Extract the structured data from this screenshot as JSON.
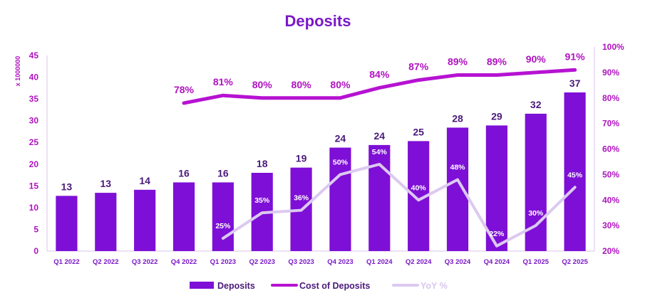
{
  "chart_data": {
    "type": "bar",
    "title": "Deposits",
    "ylabel_left": "x 1000000",
    "ylim_left": [
      0,
      45
    ],
    "yticks_left": [
      "0",
      "5",
      "10",
      "15",
      "20",
      "25",
      "30",
      "35",
      "40",
      "45"
    ],
    "ylim_right": [
      0.2,
      1.0
    ],
    "yticks_right": [
      "20%",
      "30%",
      "40%",
      "50%",
      "60%",
      "70%",
      "80%",
      "90%",
      "100%"
    ],
    "categories": [
      "Q1 2022",
      "Q2 2022",
      "Q3 2022",
      "Q4 2022",
      "Q1 2023",
      "Q2 2023",
      "Q3 2023",
      "Q4 2023",
      "Q1 2024",
      "Q2 2024",
      "Q3 2024",
      "Q4 2024",
      "Q1 2025",
      "Q2 2025"
    ],
    "series": [
      {
        "name": "Deposits",
        "kind": "bar",
        "axis": "left",
        "color": "#7e0fd6",
        "values": [
          12.7,
          13.4,
          14.1,
          15.8,
          15.8,
          18.0,
          19.2,
          23.8,
          24.4,
          25.3,
          28.4,
          28.9,
          31.6,
          36.5
        ],
        "labels": [
          "13",
          "13",
          "14",
          "16",
          "16",
          "18",
          "19",
          "24",
          "24",
          "25",
          "28",
          "29",
          "32",
          "37"
        ]
      },
      {
        "name": "Cost of Deposits",
        "kind": "line",
        "axis": "right",
        "color": "#b612d2",
        "values": [
          null,
          null,
          null,
          0.78,
          0.81,
          0.8,
          0.8,
          0.8,
          0.84,
          0.87,
          0.89,
          0.89,
          0.9,
          0.91
        ],
        "labels": [
          "",
          "",
          "",
          "78%",
          "81%",
          "80%",
          "80%",
          "80%",
          "84%",
          "87%",
          "89%",
          "89%",
          "90%",
          "91%"
        ]
      },
      {
        "name": "YoY %",
        "kind": "line",
        "axis": "right",
        "color": "#dcc9f0",
        "values": [
          null,
          null,
          null,
          null,
          0.25,
          0.35,
          0.36,
          0.5,
          0.54,
          0.4,
          0.48,
          0.22,
          0.3,
          0.45
        ],
        "labels": [
          "",
          "",
          "",
          "",
          "25%",
          "35%",
          "36%",
          "50%",
          "54%",
          "40%",
          "48%",
          "22%",
          "30%",
          "45%"
        ]
      }
    ],
    "legend": "bottom-center"
  }
}
